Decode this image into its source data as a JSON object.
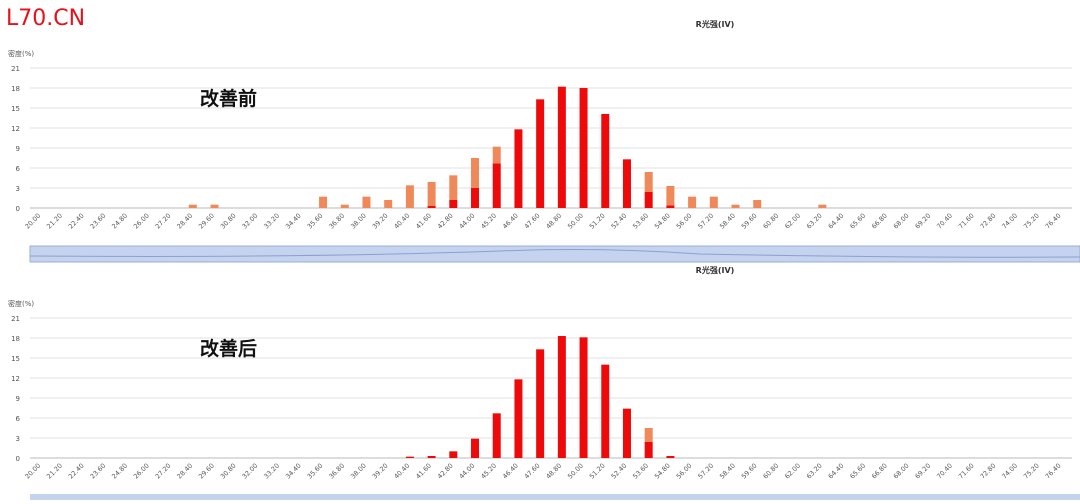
{
  "watermark": "L70.CN",
  "chart_data": [
    {
      "type": "bar",
      "stacked": true,
      "title": "R光强(IV)",
      "y_label": "密度(%)",
      "annotation": "改善前",
      "categories": [
        "20.00",
        "21.20",
        "22.40",
        "23.60",
        "24.80",
        "26.00",
        "27.20",
        "28.40",
        "29.60",
        "30.80",
        "32.00",
        "33.20",
        "34.40",
        "35.60",
        "36.80",
        "38.00",
        "39.20",
        "40.40",
        "41.60",
        "42.80",
        "44.00",
        "45.20",
        "46.40",
        "47.60",
        "48.80",
        "50.00",
        "51.20",
        "52.40",
        "53.60",
        "54.80",
        "56.00",
        "57.20",
        "58.40",
        "59.60",
        "60.80",
        "62.00",
        "63.20",
        "64.40",
        "65.60",
        "66.80",
        "68.00",
        "69.20",
        "70.40",
        "71.60",
        "72.80",
        "74.00",
        "75.20",
        "76.40"
      ],
      "series": [
        {
          "color": "#ee0a0a",
          "values": [
            0,
            0,
            0,
            0,
            0,
            0,
            0,
            0,
            0,
            0,
            0,
            0,
            0,
            0,
            0,
            0,
            0,
            0,
            0.3,
            1.2,
            3,
            6.7,
            11.8,
            16.3,
            18.2,
            18,
            14.1,
            7.3,
            2.4,
            0.4,
            0,
            0,
            0,
            0,
            0,
            0,
            0,
            0,
            0,
            0,
            0,
            0,
            0,
            0,
            0,
            0,
            0,
            0
          ]
        },
        {
          "color": "#f0895a",
          "values": [
            0,
            0,
            0,
            0,
            0,
            0,
            0,
            0.5,
            0.5,
            0,
            0,
            0,
            0,
            1.7,
            0.5,
            1.7,
            1.2,
            3.4,
            3.6,
            3.7,
            4.5,
            2.5,
            0,
            0,
            0,
            0,
            0,
            0,
            3,
            2.9,
            1.7,
            1.7,
            0.5,
            1.2,
            0,
            0,
            0.5,
            0,
            0,
            0,
            0,
            0,
            0,
            0,
            0,
            0,
            0,
            0
          ]
        }
      ],
      "ylim": [
        0,
        21
      ],
      "yticks": [
        0,
        3,
        6,
        9,
        12,
        15,
        18,
        21
      ],
      "grid": true
    },
    {
      "type": "bar",
      "stacked": true,
      "title": "R光强(IV)",
      "y_label": "密度(%)",
      "annotation": "改善后",
      "categories": [
        "20.00",
        "21.20",
        "22.40",
        "23.60",
        "24.80",
        "26.00",
        "27.20",
        "28.40",
        "29.60",
        "30.80",
        "32.00",
        "33.20",
        "34.40",
        "35.60",
        "36.80",
        "38.00",
        "39.20",
        "40.40",
        "41.60",
        "42.80",
        "44.00",
        "45.20",
        "46.40",
        "47.60",
        "48.80",
        "50.00",
        "51.20",
        "52.40",
        "53.60",
        "54.80",
        "56.00",
        "57.20",
        "58.40",
        "59.60",
        "60.80",
        "62.00",
        "63.20",
        "64.40",
        "65.60",
        "66.80",
        "68.00",
        "69.20",
        "70.40",
        "71.60",
        "72.80",
        "74.00",
        "75.20",
        "76.40"
      ],
      "series": [
        {
          "color": "#ee0a0a",
          "values": [
            0,
            0,
            0,
            0,
            0,
            0,
            0,
            0,
            0,
            0,
            0,
            0,
            0,
            0,
            0,
            0,
            0,
            0.2,
            0.3,
            1,
            2.9,
            6.7,
            11.8,
            16.3,
            18.3,
            18.1,
            14,
            7.4,
            2.4,
            0.3,
            0,
            0,
            0,
            0,
            0,
            0,
            0,
            0,
            0,
            0,
            0,
            0,
            0,
            0,
            0,
            0,
            0,
            0
          ]
        },
        {
          "color": "#f0895a",
          "values": [
            0,
            0,
            0,
            0,
            0,
            0,
            0,
            0,
            0,
            0,
            0,
            0,
            0,
            0,
            0,
            0,
            0,
            0,
            0,
            0,
            0,
            0,
            0,
            0,
            0,
            0,
            0,
            0,
            2.1,
            0,
            0,
            0,
            0,
            0,
            0,
            0,
            0,
            0,
            0,
            0,
            0,
            0,
            0,
            0,
            0,
            0,
            0,
            0
          ]
        }
      ],
      "ylim": [
        0,
        21
      ],
      "yticks": [
        0,
        3,
        6,
        9,
        12,
        15,
        18,
        21
      ],
      "grid": true
    }
  ]
}
